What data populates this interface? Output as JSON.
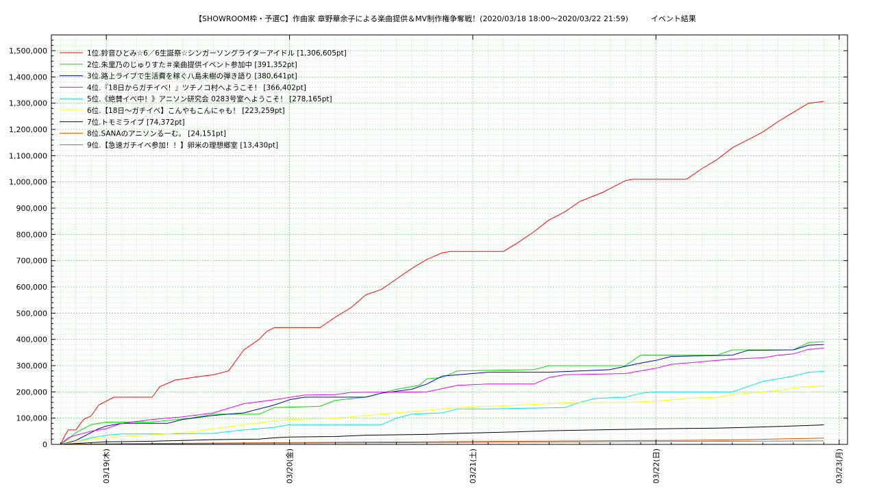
{
  "chart_data": {
    "type": "line",
    "title": "【SHOWROOM枠・予選C】作曲家 章野華余子による楽曲提供＆MV制作権争奪戦！(2020/03/18 18:00〜2020/03/22 21:59)　　　イベント結果",
    "xlabel": "",
    "ylabel": "",
    "x_range_hours": [
      0,
      100
    ],
    "ylim": [
      0,
      1560000
    ],
    "yticks": [
      "1,500,000",
      "1,400,000",
      "1,300,000",
      "1,200,000",
      "1,100,000",
      "1,000,000",
      "900,000",
      "800,000",
      "700,000",
      "600,000",
      "500,000",
      "400,000",
      "300,000",
      "200,000",
      "100,000",
      "0"
    ],
    "ytick_values": [
      1500000,
      1400000,
      1300000,
      1200000,
      1100000,
      1000000,
      900000,
      800000,
      700000,
      600000,
      500000,
      400000,
      300000,
      200000,
      100000,
      0
    ],
    "xticks": [
      {
        "label": "03/19(木)",
        "hour": 6
      },
      {
        "label": "03/20(金)",
        "hour": 30
      },
      {
        "label": "03/21(土)",
        "hour": 54
      },
      {
        "label": "03/22(日)",
        "hour": 78
      },
      {
        "label": "03/23(月)",
        "hour": 102
      }
    ],
    "grid": true,
    "legend_position": "top-left",
    "series": [
      {
        "name": "1位.鈴音ひとみ☆6／6生誕祭☆シンガーソングライターアイドル [1,306,605pt]",
        "color": "#ff0000",
        "points": [
          [
            0,
            0
          ],
          [
            0.5,
            30000
          ],
          [
            1,
            55000
          ],
          [
            2,
            55000
          ],
          [
            3,
            95000
          ],
          [
            4,
            108000
          ],
          [
            5,
            150000
          ],
          [
            6,
            165000
          ],
          [
            7,
            180000
          ],
          [
            12,
            180000
          ],
          [
            13,
            220000
          ],
          [
            15,
            245000
          ],
          [
            18,
            258000
          ],
          [
            20,
            265000
          ],
          [
            22,
            280000
          ],
          [
            24,
            360000
          ],
          [
            26,
            400000
          ],
          [
            27,
            430000
          ],
          [
            28,
            445000
          ],
          [
            34,
            445000
          ],
          [
            36,
            485000
          ],
          [
            38,
            520000
          ],
          [
            40,
            570000
          ],
          [
            42,
            590000
          ],
          [
            44,
            630000
          ],
          [
            46,
            670000
          ],
          [
            48,
            705000
          ],
          [
            50,
            730000
          ],
          [
            51,
            735000
          ],
          [
            58,
            735000
          ],
          [
            60,
            770000
          ],
          [
            62,
            810000
          ],
          [
            64,
            855000
          ],
          [
            66,
            885000
          ],
          [
            68,
            925000
          ],
          [
            71,
            960000
          ],
          [
            74,
            1005000
          ],
          [
            75,
            1010000
          ],
          [
            82,
            1010000
          ],
          [
            84,
            1050000
          ],
          [
            86,
            1085000
          ],
          [
            88,
            1130000
          ],
          [
            90,
            1160000
          ],
          [
            92,
            1190000
          ],
          [
            94,
            1230000
          ],
          [
            96,
            1265000
          ],
          [
            98,
            1300000
          ],
          [
            100,
            1306605
          ]
        ]
      },
      {
        "name": "2位.朱里乃のじゅりすた＃楽曲提供イベント参加中 [391,352pt]",
        "color": "#00dd00",
        "points": [
          [
            0,
            0
          ],
          [
            1,
            20000
          ],
          [
            2,
            45000
          ],
          [
            3,
            60000
          ],
          [
            4,
            75000
          ],
          [
            6,
            85000
          ],
          [
            12,
            85000
          ],
          [
            17,
            100000
          ],
          [
            20,
            115000
          ],
          [
            26,
            115000
          ],
          [
            28,
            140000
          ],
          [
            34,
            145000
          ],
          [
            36,
            168000
          ],
          [
            40,
            180000
          ],
          [
            42,
            195000
          ],
          [
            44,
            210000
          ],
          [
            47,
            225000
          ],
          [
            48,
            250000
          ],
          [
            50,
            255000
          ],
          [
            52,
            280000
          ],
          [
            56,
            282000
          ],
          [
            62,
            285000
          ],
          [
            64,
            300000
          ],
          [
            74,
            300000
          ],
          [
            76,
            340000
          ],
          [
            86,
            340000
          ],
          [
            88,
            360000
          ],
          [
            96,
            360000
          ],
          [
            98,
            388000
          ],
          [
            100,
            391352
          ]
        ]
      },
      {
        "name": "3位.路上ライブで生活費を稼ぐ八島未樹の弾き語り [380,641pt]",
        "color": "#0000cc",
        "points": [
          [
            0,
            0
          ],
          [
            2,
            15000
          ],
          [
            3,
            30000
          ],
          [
            4,
            45000
          ],
          [
            5,
            60000
          ],
          [
            6,
            70000
          ],
          [
            8,
            80000
          ],
          [
            14,
            80000
          ],
          [
            16,
            95000
          ],
          [
            20,
            110000
          ],
          [
            24,
            120000
          ],
          [
            28,
            150000
          ],
          [
            30,
            170000
          ],
          [
            32,
            180000
          ],
          [
            40,
            180000
          ],
          [
            42,
            195000
          ],
          [
            46,
            210000
          ],
          [
            48,
            230000
          ],
          [
            50,
            260000
          ],
          [
            52,
            265000
          ],
          [
            56,
            275000
          ],
          [
            62,
            275000
          ],
          [
            64,
            275000
          ],
          [
            72,
            285000
          ],
          [
            76,
            310000
          ],
          [
            78,
            320000
          ],
          [
            80,
            335000
          ],
          [
            88,
            340000
          ],
          [
            90,
            358000
          ],
          [
            96,
            360000
          ],
          [
            98,
            378000
          ],
          [
            100,
            380641
          ]
        ]
      },
      {
        "name": "4位.『18日からガチイベ！』ツチノコ村へようこそ！ [366,402pt]",
        "color": "#ee00ee",
        "points": [
          [
            0,
            0
          ],
          [
            1,
            25000
          ],
          [
            2,
            35000
          ],
          [
            4,
            50000
          ],
          [
            6,
            60000
          ],
          [
            8,
            80000
          ],
          [
            12,
            95000
          ],
          [
            16,
            105000
          ],
          [
            20,
            120000
          ],
          [
            24,
            155000
          ],
          [
            28,
            170000
          ],
          [
            32,
            188000
          ],
          [
            36,
            190000
          ],
          [
            38,
            198000
          ],
          [
            48,
            200000
          ],
          [
            52,
            225000
          ],
          [
            56,
            230000
          ],
          [
            62,
            230000
          ],
          [
            64,
            255000
          ],
          [
            66,
            265000
          ],
          [
            74,
            270000
          ],
          [
            78,
            290000
          ],
          [
            80,
            305000
          ],
          [
            84,
            315000
          ],
          [
            88,
            325000
          ],
          [
            92,
            330000
          ],
          [
            94,
            340000
          ],
          [
            96,
            345000
          ],
          [
            98,
            362000
          ],
          [
            100,
            366402
          ]
        ]
      },
      {
        "name": "5位.《絶賛イベ中！》アニソン研究会 0283号室へようこそ！ [278,165pt]",
        "color": "#00e5e5",
        "points": [
          [
            0,
            0
          ],
          [
            2,
            10000
          ],
          [
            4,
            25000
          ],
          [
            6,
            35000
          ],
          [
            8,
            40000
          ],
          [
            14,
            40000
          ],
          [
            20,
            42000
          ],
          [
            24,
            55000
          ],
          [
            28,
            65000
          ],
          [
            30,
            75000
          ],
          [
            42,
            75000
          ],
          [
            44,
            100000
          ],
          [
            46,
            115000
          ],
          [
            50,
            120000
          ],
          [
            52,
            135000
          ],
          [
            56,
            135000
          ],
          [
            66,
            140000
          ],
          [
            68,
            160000
          ],
          [
            70,
            175000
          ],
          [
            74,
            180000
          ],
          [
            76,
            195000
          ],
          [
            78,
            200000
          ],
          [
            88,
            200000
          ],
          [
            90,
            220000
          ],
          [
            92,
            240000
          ],
          [
            94,
            250000
          ],
          [
            96,
            260000
          ],
          [
            98,
            275000
          ],
          [
            100,
            278165
          ]
        ]
      },
      {
        "name": "6位.【18日〜ガチイベ】こんやもこんにゃも！ [223,259pt]",
        "color": "#ffff00",
        "points": [
          [
            0,
            0
          ],
          [
            4,
            20000
          ],
          [
            8,
            30000
          ],
          [
            14,
            40000
          ],
          [
            18,
            50000
          ],
          [
            20,
            60000
          ],
          [
            24,
            75000
          ],
          [
            28,
            90000
          ],
          [
            30,
            95000
          ],
          [
            36,
            100000
          ],
          [
            40,
            110000
          ],
          [
            44,
            120000
          ],
          [
            48,
            130000
          ],
          [
            52,
            140000
          ],
          [
            56,
            145000
          ],
          [
            60,
            150000
          ],
          [
            64,
            155000
          ],
          [
            68,
            160000
          ],
          [
            74,
            160000
          ],
          [
            78,
            165000
          ],
          [
            82,
            175000
          ],
          [
            86,
            180000
          ],
          [
            88,
            190000
          ],
          [
            90,
            195000
          ],
          [
            92,
            200000
          ],
          [
            94,
            205000
          ],
          [
            96,
            215000
          ],
          [
            98,
            220000
          ],
          [
            100,
            223259
          ]
        ]
      },
      {
        "name": "7位.トモミライブ [74,372pt]",
        "color": "#000000",
        "points": [
          [
            0,
            0
          ],
          [
            6,
            10000
          ],
          [
            12,
            12000
          ],
          [
            20,
            18000
          ],
          [
            26,
            20000
          ],
          [
            28,
            25000
          ],
          [
            30,
            28000
          ],
          [
            36,
            30000
          ],
          [
            40,
            35000
          ],
          [
            48,
            38000
          ],
          [
            52,
            42000
          ],
          [
            56,
            45000
          ],
          [
            60,
            48000
          ],
          [
            64,
            52000
          ],
          [
            70,
            55000
          ],
          [
            76,
            58000
          ],
          [
            80,
            60000
          ],
          [
            86,
            62000
          ],
          [
            90,
            65000
          ],
          [
            94,
            68000
          ],
          [
            98,
            72000
          ],
          [
            100,
            74372
          ]
        ]
      },
      {
        "name": "8位.SANAのアニソンるーむ。 [24,151pt]",
        "color": "#dd5500",
        "points": [
          [
            0,
            0
          ],
          [
            8,
            3000
          ],
          [
            20,
            5000
          ],
          [
            36,
            8000
          ],
          [
            48,
            10000
          ],
          [
            60,
            12000
          ],
          [
            72,
            14000
          ],
          [
            80,
            15000
          ],
          [
            90,
            18000
          ],
          [
            94,
            21000
          ],
          [
            98,
            23000
          ],
          [
            100,
            24151
          ]
        ]
      },
      {
        "name": "9位.【急速ガチイベ参加！！】卵米の理想郷室 [13,430pt]",
        "color": "#777777",
        "points": [
          [
            0,
            0
          ],
          [
            10,
            2000
          ],
          [
            24,
            4000
          ],
          [
            40,
            6000
          ],
          [
            56,
            8000
          ],
          [
            70,
            10000
          ],
          [
            84,
            11500
          ],
          [
            100,
            13430
          ]
        ]
      }
    ]
  }
}
